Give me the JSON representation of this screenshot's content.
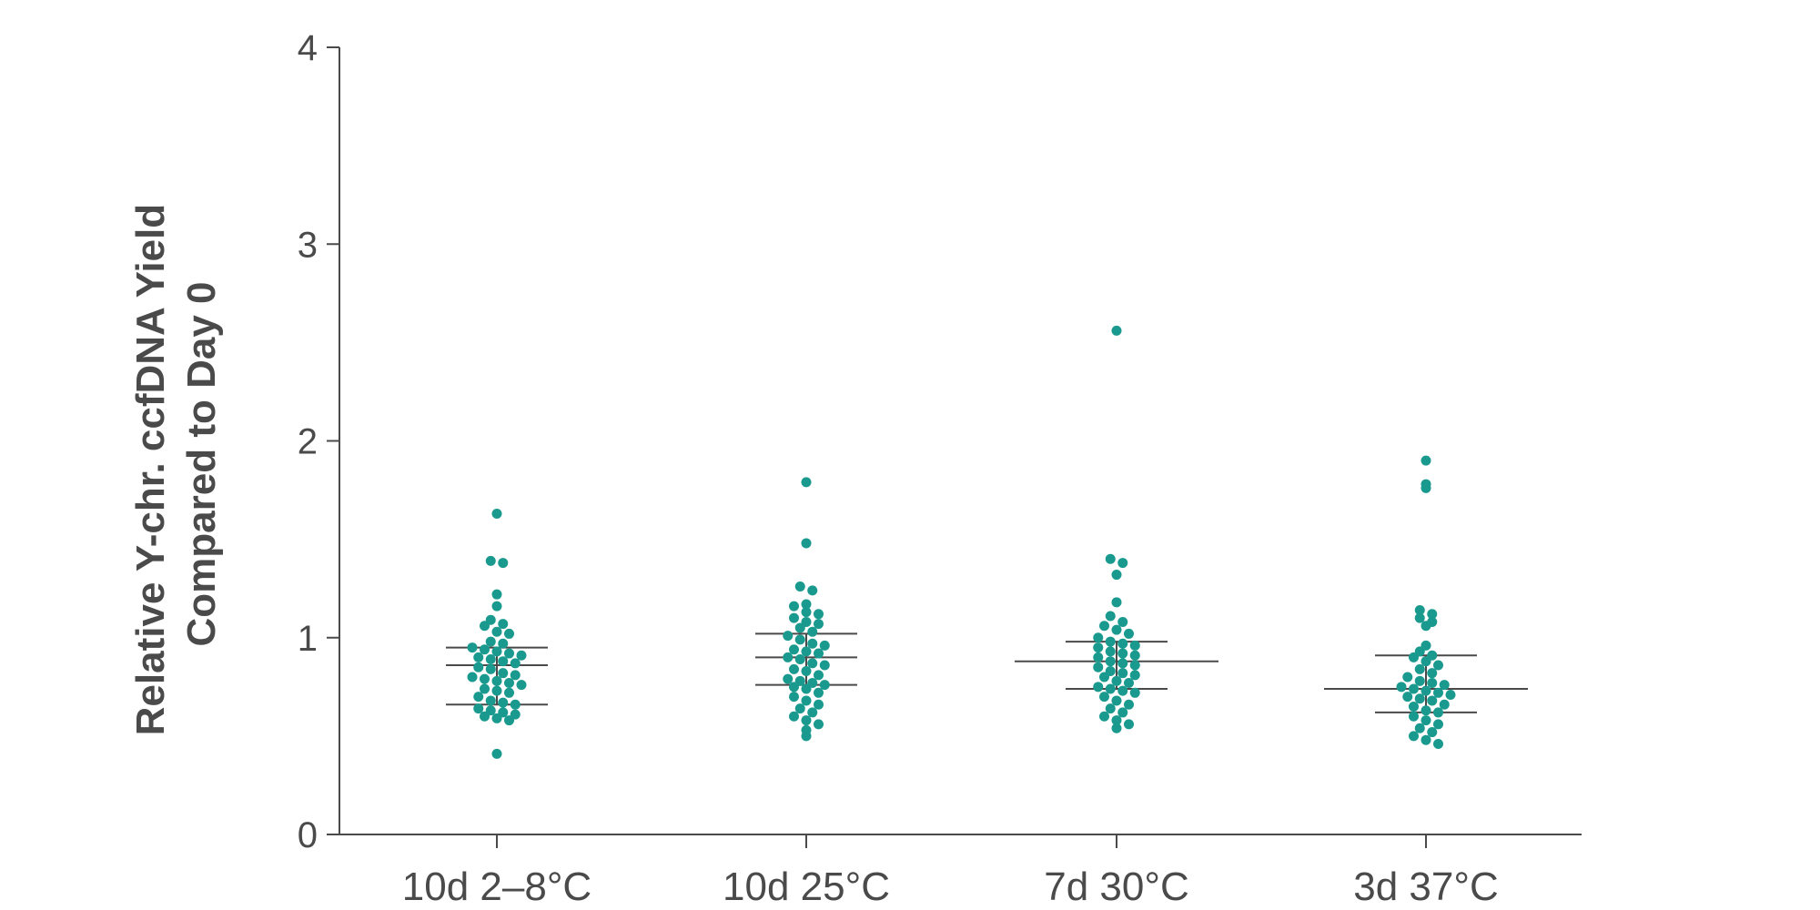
{
  "chart_data": {
    "type": "scatter",
    "subtype": "dot-plot",
    "ylabel": [
      "Relative Y-chr. ccfDNA Yield",
      "Compared to Day 0"
    ],
    "ylim": [
      0,
      4
    ],
    "yticks": [
      0,
      1,
      2,
      3,
      4
    ],
    "grid": false,
    "point_color": "#1a9a8e",
    "categories": [
      "10d 2–8°C",
      "10d 25°C",
      "7d 30°C",
      "3d 37°C"
    ],
    "groups": [
      {
        "category": "10d 2–8°C",
        "median": 0.86,
        "q1": 0.66,
        "q3": 0.95,
        "values": [
          1.63,
          1.39,
          1.38,
          1.22,
          1.16,
          1.09,
          1.07,
          1.06,
          1.03,
          1.02,
          0.98,
          0.97,
          0.95,
          0.94,
          0.93,
          0.92,
          0.91,
          0.9,
          0.89,
          0.88,
          0.87,
          0.85,
          0.84,
          0.82,
          0.81,
          0.8,
          0.79,
          0.78,
          0.77,
          0.76,
          0.74,
          0.73,
          0.72,
          0.7,
          0.68,
          0.67,
          0.66,
          0.64,
          0.63,
          0.62,
          0.61,
          0.6,
          0.59,
          0.58,
          0.41
        ]
      },
      {
        "category": "10d 25°C",
        "median": 0.9,
        "q1": 0.76,
        "q3": 1.02,
        "values": [
          1.79,
          1.48,
          1.26,
          1.24,
          1.17,
          1.16,
          1.13,
          1.12,
          1.1,
          1.08,
          1.07,
          1.05,
          1.03,
          1.01,
          0.99,
          0.97,
          0.96,
          0.94,
          0.93,
          0.92,
          0.9,
          0.89,
          0.87,
          0.86,
          0.84,
          0.83,
          0.81,
          0.79,
          0.78,
          0.77,
          0.76,
          0.75,
          0.74,
          0.72,
          0.7,
          0.68,
          0.66,
          0.64,
          0.62,
          0.6,
          0.58,
          0.56,
          0.53,
          0.5
        ]
      },
      {
        "category": "7d 30°C",
        "median": 0.88,
        "q1": 0.74,
        "q3": 0.98,
        "values": [
          2.56,
          1.4,
          1.38,
          1.32,
          1.18,
          1.11,
          1.08,
          1.06,
          1.04,
          1.02,
          1.0,
          0.98,
          0.97,
          0.96,
          0.95,
          0.93,
          0.92,
          0.91,
          0.9,
          0.88,
          0.87,
          0.86,
          0.85,
          0.83,
          0.82,
          0.81,
          0.8,
          0.78,
          0.77,
          0.75,
          0.74,
          0.73,
          0.72,
          0.7,
          0.68,
          0.66,
          0.64,
          0.62,
          0.6,
          0.58,
          0.56,
          0.54
        ]
      },
      {
        "category": "3d 37°C",
        "median": 0.74,
        "q1": 0.62,
        "q3": 0.91,
        "values": [
          1.9,
          1.78,
          1.76,
          1.14,
          1.12,
          1.1,
          1.08,
          1.06,
          0.96,
          0.93,
          0.91,
          0.9,
          0.88,
          0.86,
          0.84,
          0.82,
          0.8,
          0.78,
          0.77,
          0.76,
          0.75,
          0.74,
          0.73,
          0.72,
          0.71,
          0.7,
          0.69,
          0.68,
          0.66,
          0.65,
          0.63,
          0.62,
          0.6,
          0.58,
          0.56,
          0.54,
          0.52,
          0.5,
          0.48,
          0.46
        ]
      }
    ]
  }
}
